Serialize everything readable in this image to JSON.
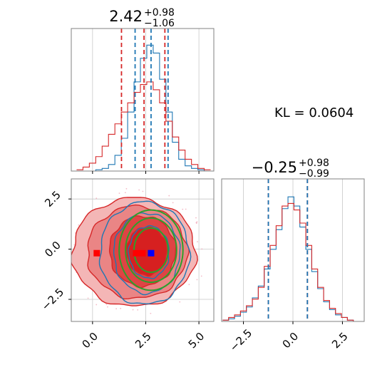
{
  "colors": {
    "blue": "#1f77b4",
    "red": "#d62728",
    "green": "#2ca02c",
    "marker_red": "#ff0000",
    "marker_blue": "#0000ff",
    "grid": "#c8c8c8",
    "frame": "#808080"
  },
  "annotation": "KL = 0.0604",
  "chart_data": [
    {
      "type": "histogram",
      "panel": "top-left marginal",
      "title": {
        "main": "2.42",
        "sup": "+0.98",
        "sub": "−1.06"
      },
      "xlim": [
        -1.0,
        5.7
      ],
      "grid": true,
      "vlines": {
        "red": [
          1.36,
          2.42,
          3.4
        ],
        "blue": [
          2.0,
          2.75,
          3.55
        ]
      },
      "series": [
        {
          "color": "blue",
          "bin_centers": [
            -0.6,
            -0.3,
            0.0,
            0.3,
            0.6,
            0.9,
            1.2,
            1.5,
            1.8,
            2.1,
            2.4,
            2.7,
            3.0,
            3.3,
            3.6,
            3.9,
            4.2,
            4.5,
            4.8,
            5.1,
            5.4
          ],
          "heights": [
            0.0,
            0.0,
            0.0,
            0.01,
            0.02,
            0.05,
            0.12,
            0.25,
            0.45,
            0.68,
            0.86,
            0.96,
            0.9,
            0.7,
            0.45,
            0.22,
            0.09,
            0.04,
            0.02,
            0.01,
            0.0
          ]
        },
        {
          "color": "red",
          "bin_centers": [
            -0.6,
            -0.3,
            0.0,
            0.3,
            0.6,
            0.9,
            1.2,
            1.5,
            1.8,
            2.1,
            2.4,
            2.7,
            3.0,
            3.3,
            3.6,
            3.9,
            4.2,
            4.5,
            4.8,
            5.1,
            5.4
          ],
          "heights": [
            0.01,
            0.03,
            0.06,
            0.11,
            0.19,
            0.28,
            0.36,
            0.45,
            0.52,
            0.6,
            0.66,
            0.68,
            0.62,
            0.52,
            0.38,
            0.26,
            0.16,
            0.09,
            0.05,
            0.02,
            0.01
          ]
        }
      ]
    },
    {
      "type": "histogram",
      "panel": "bottom-right marginal",
      "title": {
        "main": "−0.25",
        "sup": "+0.98",
        "sub": "−0.99"
      },
      "xlim": [
        -3.6,
        3.6
      ],
      "xticks": [
        "−2.5",
        "0.0",
        "2.5"
      ],
      "xtick_values": [
        -2.5,
        0.0,
        2.5
      ],
      "grid": true,
      "vlines": {
        "red": [
          -1.24,
          0.73
        ],
        "blue": [
          -1.24,
          0.73
        ]
      },
      "series": [
        {
          "color": "blue",
          "bin_centers": [
            -3.4,
            -3.1,
            -2.8,
            -2.5,
            -2.2,
            -1.9,
            -1.6,
            -1.3,
            -1.0,
            -0.7,
            -0.4,
            -0.1,
            0.2,
            0.5,
            0.8,
            1.1,
            1.4,
            1.7,
            2.0,
            2.3,
            2.6,
            2.9,
            3.2
          ],
          "heights": [
            0.01,
            0.02,
            0.04,
            0.07,
            0.11,
            0.18,
            0.27,
            0.4,
            0.55,
            0.7,
            0.86,
            0.95,
            0.88,
            0.72,
            0.55,
            0.38,
            0.25,
            0.15,
            0.09,
            0.05,
            0.03,
            0.01,
            0.0
          ]
        },
        {
          "color": "red",
          "bin_centers": [
            -3.4,
            -3.1,
            -2.8,
            -2.5,
            -2.2,
            -1.9,
            -1.6,
            -1.3,
            -1.0,
            -0.7,
            -0.4,
            -0.1,
            0.2,
            0.5,
            0.8,
            1.1,
            1.4,
            1.7,
            2.0,
            2.3,
            2.6,
            2.9,
            3.2
          ],
          "heights": [
            0.01,
            0.03,
            0.05,
            0.08,
            0.12,
            0.17,
            0.26,
            0.42,
            0.58,
            0.73,
            0.88,
            0.9,
            0.85,
            0.75,
            0.58,
            0.4,
            0.26,
            0.16,
            0.1,
            0.06,
            0.03,
            0.01,
            0.0
          ]
        }
      ]
    },
    {
      "type": "contour",
      "panel": "bottom-left joint",
      "xlim": [
        -1.0,
        5.7
      ],
      "ylim": [
        -3.6,
        3.5
      ],
      "xticks": [
        "0.0",
        "2.5",
        "5.0"
      ],
      "xtick_values": [
        0.0,
        2.5,
        5.0
      ],
      "yticks": [
        "−2.5",
        "0.0",
        "2.5"
      ],
      "ytick_values": [
        -2.5,
        0.0,
        2.5
      ],
      "grid": true,
      "red_filled_levels": [
        {
          "center": [
            1.95,
            -0.15
          ],
          "rx": 2.9,
          "ry": 2.7,
          "fill": "#f4b6b6"
        },
        {
          "center": [
            2.1,
            -0.15
          ],
          "rx": 2.35,
          "ry": 2.3,
          "fill": "#ea8585"
        },
        {
          "center": [
            2.35,
            -0.1
          ],
          "rx": 1.55,
          "ry": 1.75,
          "fill": "#de4444"
        },
        {
          "center": [
            2.55,
            -0.1
          ],
          "rx": 0.95,
          "ry": 1.2,
          "fill": "#d62020"
        }
      ],
      "blue_contours": [
        {
          "center": [
            2.45,
            -0.2
          ],
          "rx": 2.1,
          "ry": 2.55
        },
        {
          "center": [
            2.55,
            -0.2
          ],
          "rx": 1.55,
          "ry": 2.0
        },
        {
          "center": [
            2.65,
            -0.15
          ],
          "rx": 0.95,
          "ry": 1.3
        }
      ],
      "green_ellipses": [
        {
          "center": [
            2.75,
            -0.05
          ],
          "rx": 1.5,
          "ry": 2.0
        },
        {
          "center": [
            2.75,
            -0.05
          ],
          "rx": 1.2,
          "ry": 1.6
        },
        {
          "center": [
            2.75,
            -0.05
          ],
          "rx": 0.8,
          "ry": 1.1
        }
      ],
      "markers": [
        {
          "color": "marker_red",
          "points": [
            [
              0.2,
              -0.2
            ],
            [
              2.05,
              -0.2
            ],
            [
              2.35,
              -0.2
            ]
          ]
        },
        {
          "color": "marker_blue",
          "points": [
            [
              2.75,
              -0.2
            ]
          ]
        }
      ]
    }
  ]
}
